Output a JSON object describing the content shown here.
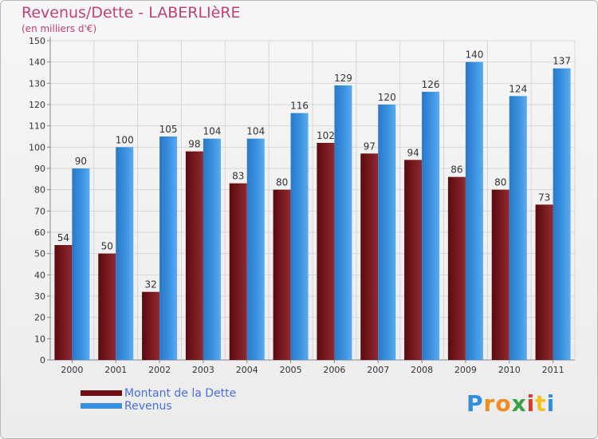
{
  "header": {
    "title": "Revenus/Dette - LABERLIèRE",
    "subtitle": "(en milliers d'€)"
  },
  "legend": {
    "items": [
      {
        "label": "Montant de la Dette",
        "color": "#6d0f15"
      },
      {
        "label": "Revenus",
        "color": "#3a8fde"
      }
    ]
  },
  "logo": {
    "letters": [
      "P",
      "r",
      "o",
      "x",
      "i",
      "t",
      "i"
    ],
    "colors": [
      "#2f8fdc",
      "#f28c1e",
      "#f28c1e",
      "#3aa043",
      "#d83a2e",
      "#f2c21e",
      "#2f8fdc"
    ]
  },
  "chart_data": {
    "type": "bar",
    "categories": [
      "2000",
      "2001",
      "2002",
      "2003",
      "2004",
      "2005",
      "2006",
      "2007",
      "2008",
      "2009",
      "2010",
      "2011"
    ],
    "series": [
      {
        "name": "Montant de la Dette",
        "values": [
          54,
          50,
          32,
          98,
          83,
          80,
          102,
          97,
          94,
          86,
          80,
          73
        ],
        "color": "#6d0f15"
      },
      {
        "name": "Revenus",
        "values": [
          90,
          100,
          105,
          104,
          104,
          116,
          129,
          120,
          126,
          140,
          124,
          137
        ],
        "color": "#3a8fde"
      }
    ],
    "ylim": [
      0,
      150
    ],
    "ytick_step": 10,
    "grid": true,
    "legend_position": "bottom-left"
  }
}
